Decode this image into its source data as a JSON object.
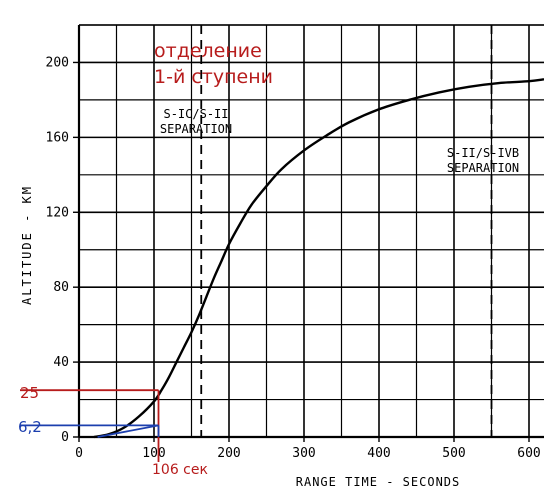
{
  "chart_data": {
    "type": "line",
    "xlabel": "RANGE TIME - SECONDS",
    "ylabel": "ALTITUDE - KM",
    "xlim": [
      0,
      620
    ],
    "ylim": [
      0,
      220
    ],
    "x_ticks": [
      0,
      100,
      200,
      300,
      400,
      500,
      600
    ],
    "y_ticks": [
      0,
      40,
      80,
      120,
      160,
      200
    ],
    "grid": true,
    "series": [
      {
        "x": [
          20,
          40,
          60,
          80,
          100,
          110,
          120,
          130,
          140,
          150,
          160,
          170,
          180,
          190,
          200,
          215,
          230,
          250,
          270,
          300,
          330,
          360,
          400,
          440,
          480,
          520,
          560,
          600,
          620
        ],
        "y": [
          0,
          1.5,
          5,
          11,
          19,
          25,
          32,
          40,
          48,
          56,
          65,
          75,
          85,
          94,
          103,
          114,
          124,
          134,
          143,
          153,
          161,
          168,
          175,
          180,
          184,
          187,
          189,
          190,
          191
        ]
      }
    ],
    "events": [
      {
        "x": 163,
        "label_line1": "S-IC/S-II",
        "label_line2": "SEPARATION"
      },
      {
        "x": 550,
        "label_line1": "S-II/S-IVB",
        "label_line2": "SEPARATION"
      }
    ],
    "annotations": {
      "separation_ru": [
        "отделение",
        "1-й ступени"
      ],
      "altitude_25": {
        "label": "25",
        "y": 25
      },
      "altitude_62": {
        "label": "6,2",
        "y": 6.2
      },
      "time_106": {
        "label": "106 сек",
        "x": 106
      }
    },
    "colors": {
      "red_annotation": "#b71c1c",
      "blue_annotation": "#1c3fae",
      "grid": "#000000"
    }
  }
}
